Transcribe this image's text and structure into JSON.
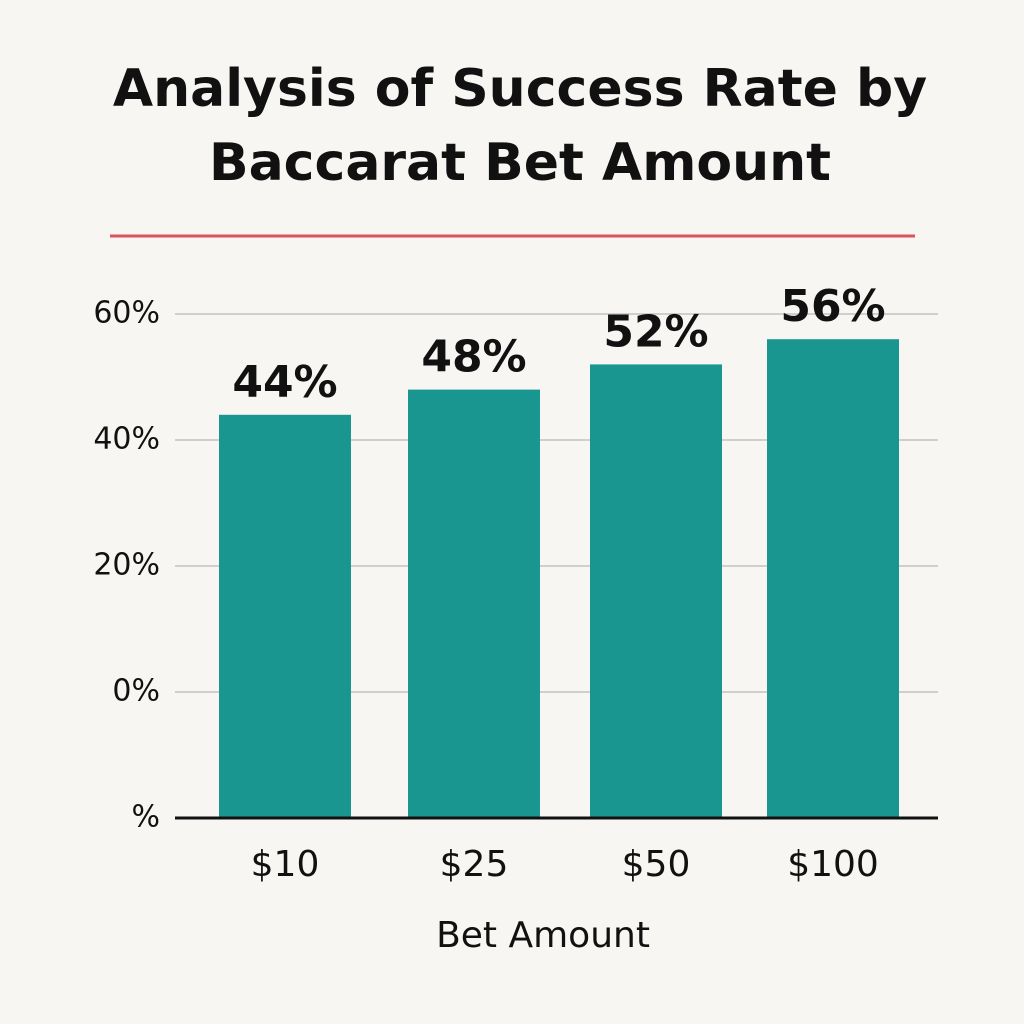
{
  "chart_data": {
    "type": "bar",
    "title": "Analysis of Success Rate by Baccarat Bet Amount",
    "x_label": "Bet Amount",
    "categories": [
      "$10",
      "$25",
      "$50",
      "$100"
    ],
    "values": [
      44,
      48,
      52,
      56
    ],
    "value_labels": [
      "44%",
      "48%",
      "52%",
      "56%"
    ],
    "color": "#1a9690",
    "ylim": [
      -20,
      60
    ],
    "yticks": [
      {
        "value": -20,
        "label": "%"
      },
      {
        "value": 0,
        "label": "0%"
      },
      {
        "value": 20,
        "label": "20%"
      },
      {
        "value": 40,
        "label": "40%"
      },
      {
        "value": 60,
        "label": "60%"
      }
    ],
    "grid": true
  }
}
